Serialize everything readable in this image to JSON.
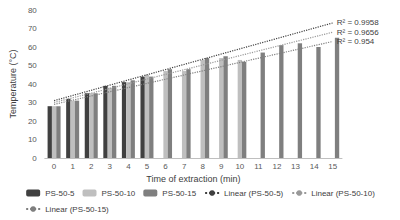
{
  "chart_data": {
    "type": "bar",
    "x_label": "Time of extraction (min)",
    "y_label": "Temperature (°C)",
    "categories": [
      "0",
      "1",
      "2",
      "3",
      "4",
      "5",
      "6",
      "7",
      "8",
      "9",
      "10",
      "11",
      "12",
      "13",
      "14",
      "15"
    ],
    "series": [
      {
        "name": "PS-50-5",
        "type": "bar",
        "color": "#404040",
        "values": [
          28,
          32,
          35,
          39,
          41,
          44,
          null,
          null,
          null,
          null,
          null,
          null,
          null,
          null,
          null,
          null
        ]
      },
      {
        "name": "PS-50-10",
        "type": "bar",
        "color": "#bfbfbf",
        "values": [
          28,
          31,
          35,
          38,
          41,
          45,
          47,
          47,
          53,
          54,
          53,
          null,
          null,
          null,
          null,
          null
        ]
      },
      {
        "name": "PS-50-15",
        "type": "bar",
        "color": "#7f7f7f",
        "values": [
          28,
          31,
          35,
          39,
          42,
          44,
          48,
          48,
          54,
          55,
          52,
          57,
          61,
          62,
          60,
          65
        ]
      },
      {
        "name": "Linear (PS-50-5)",
        "type": "line",
        "line_style": "dotted",
        "color": "#404040",
        "annotation": "R² = 0.9958",
        "values": [
          31,
          null,
          null,
          null,
          null,
          null,
          null,
          null,
          null,
          null,
          null,
          null,
          null,
          null,
          null,
          73
        ]
      },
      {
        "name": "Linear (PS-50-10)",
        "type": "line",
        "line_style": "dotted",
        "color": "#999999",
        "annotation": "R² = 0.9656",
        "values": [
          30,
          null,
          null,
          null,
          null,
          null,
          null,
          null,
          null,
          null,
          null,
          null,
          null,
          null,
          null,
          68
        ]
      },
      {
        "name": "Linear (PS-50-15)",
        "type": "line",
        "line_style": "dotted",
        "color": "#7f7f7f",
        "annotation": "R² = 0.954",
        "values": [
          29,
          null,
          null,
          null,
          null,
          null,
          null,
          null,
          null,
          null,
          null,
          null,
          null,
          null,
          null,
          63
        ]
      }
    ],
    "ylim": [
      0,
      80
    ],
    "yticks": [
      0,
      10,
      20,
      30,
      40,
      50,
      60,
      70,
      80
    ],
    "grid": false,
    "legend": "bottom"
  }
}
